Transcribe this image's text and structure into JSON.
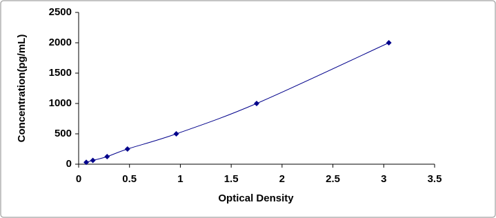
{
  "chart_data": {
    "type": "scatter-line",
    "x_label": "Optical Density",
    "y_label": "Concentration(pg/mL)",
    "x": [
      0.075,
      0.14,
      0.28,
      0.48,
      0.96,
      1.75,
      3.05
    ],
    "values": [
      31.25,
      62.5,
      125,
      250,
      500,
      1000,
      2000
    ],
    "color": "#00008b",
    "xlim": [
      0,
      3.5
    ],
    "xticks": [
      0,
      0.5,
      1,
      1.5,
      2,
      2.5,
      3,
      3.5
    ],
    "ylim": [
      0,
      2500
    ],
    "yticks": [
      0,
      500,
      1000,
      1500,
      2000,
      2500
    ]
  }
}
